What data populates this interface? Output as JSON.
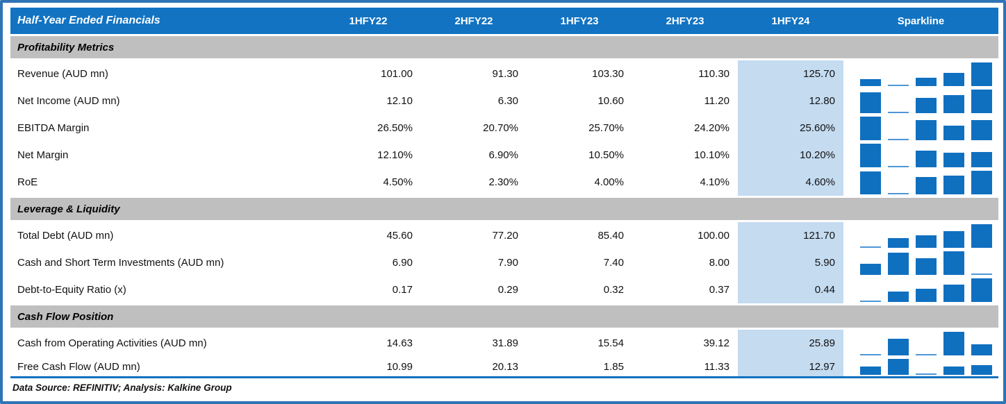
{
  "table": {
    "title": "Half-Year Ended Financials",
    "columns": [
      "1HFY22",
      "2HFY22",
      "1HFY23",
      "2HFY23",
      "1HFY24"
    ],
    "sparkline_header": "Sparkline",
    "highlight_column": "1HFY24",
    "sections": [
      {
        "title": "Profitability Metrics",
        "rows": [
          {
            "label": "Revenue (AUD mn)",
            "values": [
              "101.00",
              "91.30",
              "103.30",
              "110.30",
              "125.70"
            ]
          },
          {
            "label": "Net Income (AUD mn)",
            "values": [
              "12.10",
              "6.30",
              "10.60",
              "11.20",
              "12.80"
            ]
          },
          {
            "label": "EBITDA Margin",
            "values": [
              "26.50%",
              "20.70%",
              "25.70%",
              "24.20%",
              "25.60%"
            ]
          },
          {
            "label": "Net Margin",
            "values": [
              "12.10%",
              "6.90%",
              "10.50%",
              "10.10%",
              "10.20%"
            ]
          },
          {
            "label": "RoE",
            "values": [
              "4.50%",
              "2.30%",
              "4.00%",
              "4.10%",
              "4.60%"
            ]
          }
        ]
      },
      {
        "title": "Leverage & Liquidity",
        "rows": [
          {
            "label": "Total Debt (AUD mn)",
            "values": [
              "45.60",
              "77.20",
              "85.40",
              "100.00",
              "121.70"
            ]
          },
          {
            "label": "Cash and Short Term Investments (AUD mn)",
            "values": [
              "6.90",
              "7.90",
              "7.40",
              "8.00",
              "5.90"
            ]
          },
          {
            "label": "Debt-to-Equity Ratio (x)",
            "values": [
              "0.17",
              "0.29",
              "0.32",
              "0.37",
              "0.44"
            ]
          }
        ]
      },
      {
        "title": "Cash Flow Position",
        "rows": [
          {
            "label": "Cash from Operating Activities (AUD mn)",
            "values": [
              "14.63",
              "31.89",
              "15.54",
              "39.12",
              "25.89"
            ]
          },
          {
            "label": "Free Cash Flow (AUD mn)",
            "values": [
              "10.99",
              "20.13",
              "1.85",
              "11.33",
              "12.97"
            ]
          }
        ]
      }
    ],
    "footnote": "Data Source: REFINITIV; Analysis: Kalkine Group"
  },
  "colors": {
    "header_blue": "#1173C2",
    "sparkline_bar_blue": "#1070C0",
    "sparkline_min_blue": "#4d96d6",
    "highlight_light_blue": "#C4DBF0",
    "section_gray": "#BFBFBF",
    "outer_border_blue": "#2E74B5"
  },
  "chart_data": {
    "type": "table",
    "title": "Half-Year Ended Financials",
    "categories": [
      "1HFY22",
      "2HFY22",
      "1HFY23",
      "2HFY23",
      "1HFY24"
    ],
    "highlighted_category": "1HFY24",
    "grid": false,
    "legend_position": "none",
    "sparkline_type": "bar",
    "series": [
      {
        "name": "Revenue (AUD mn)",
        "section": "Profitability Metrics",
        "values": [
          101.0,
          91.3,
          103.3,
          110.3,
          125.7
        ]
      },
      {
        "name": "Net Income (AUD mn)",
        "section": "Profitability Metrics",
        "values": [
          12.1,
          6.3,
          10.6,
          11.2,
          12.8
        ]
      },
      {
        "name": "EBITDA Margin",
        "section": "Profitability Metrics",
        "unit": "%",
        "values": [
          26.5,
          20.7,
          25.7,
          24.2,
          25.6
        ]
      },
      {
        "name": "Net Margin",
        "section": "Profitability Metrics",
        "unit": "%",
        "values": [
          12.1,
          6.9,
          10.5,
          10.1,
          10.2
        ]
      },
      {
        "name": "RoE",
        "section": "Profitability Metrics",
        "unit": "%",
        "values": [
          4.5,
          2.3,
          4.0,
          4.1,
          4.6
        ]
      },
      {
        "name": "Total Debt (AUD mn)",
        "section": "Leverage & Liquidity",
        "values": [
          45.6,
          77.2,
          85.4,
          100.0,
          121.7
        ]
      },
      {
        "name": "Cash and Short Term Investments (AUD mn)",
        "section": "Leverage & Liquidity",
        "values": [
          6.9,
          7.9,
          7.4,
          8.0,
          5.9
        ]
      },
      {
        "name": "Debt-to-Equity Ratio (x)",
        "section": "Leverage & Liquidity",
        "values": [
          0.17,
          0.29,
          0.32,
          0.37,
          0.44
        ]
      },
      {
        "name": "Cash from Operating Activities (AUD mn)",
        "section": "Cash Flow Position",
        "values": [
          14.63,
          31.89,
          15.54,
          39.12,
          25.89
        ]
      },
      {
        "name": "Free Cash Flow (AUD mn)",
        "section": "Cash Flow Position",
        "values": [
          10.99,
          20.13,
          1.85,
          11.33,
          12.97
        ]
      }
    ]
  }
}
